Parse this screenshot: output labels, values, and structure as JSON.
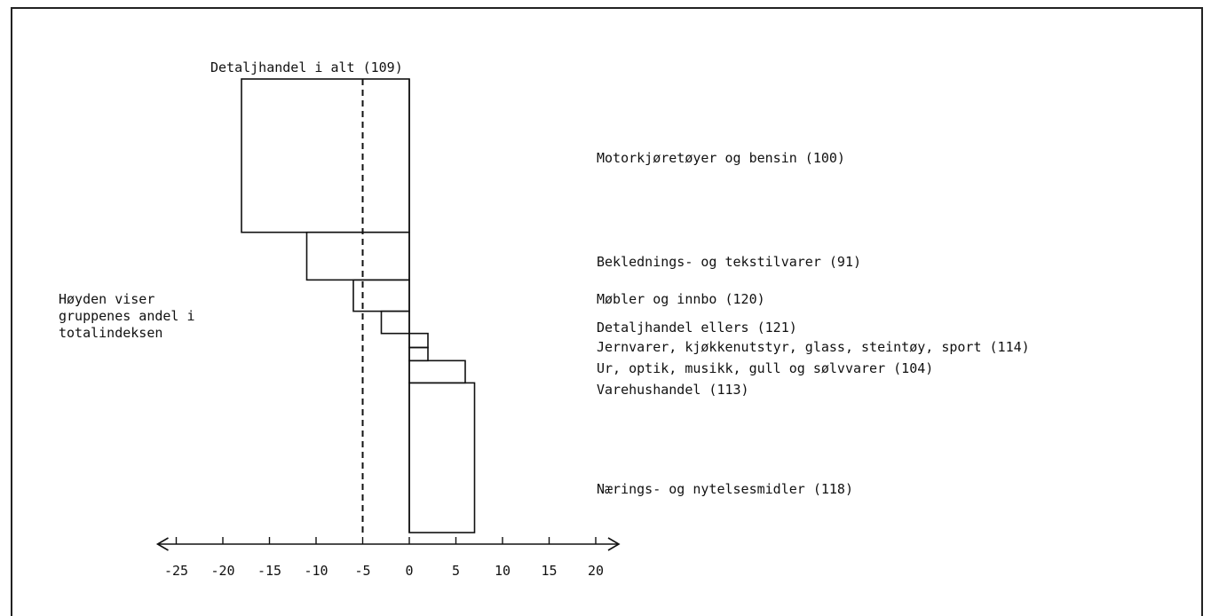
{
  "chart_data": {
    "type": "bar",
    "orientation": "horizontal",
    "reference_line": {
      "label": "Detaljhandel i alt (109)",
      "value": -5,
      "style": "dashed"
    },
    "categories": [
      "Motorkjøretøyer og bensin (100)",
      "Beklednings- og tekstilvarer (91)",
      "Møbler og innbo (120)",
      "Detaljhandel ellers (121)",
      "Jernvarer, kjøkkenutstyr, glass, steintøy, sport (114)",
      "Ur, optik, musikk, gull og sølvvarer (104)",
      "Varehushandel (113)",
      "Nærings- og nytelsesmidler (118)"
    ],
    "values": [
      -18,
      -11,
      -6,
      -3,
      2,
      2,
      6,
      7
    ],
    "shares": [
      0.338,
      0.105,
      0.069,
      0.049,
      0.031,
      0.029,
      0.049,
      0.33
    ],
    "xticks": [
      -25,
      -20,
      -15,
      -10,
      -5,
      0,
      5,
      10,
      15,
      20
    ],
    "xtick_labels": [
      "-25",
      "-20",
      "-15",
      "-10",
      "-5",
      "0",
      "5",
      "10",
      "15",
      "20"
    ],
    "xlim": [
      -27,
      22
    ],
    "note": "Høyden viser\ngruppenes andel i\ntotalindeksen"
  }
}
